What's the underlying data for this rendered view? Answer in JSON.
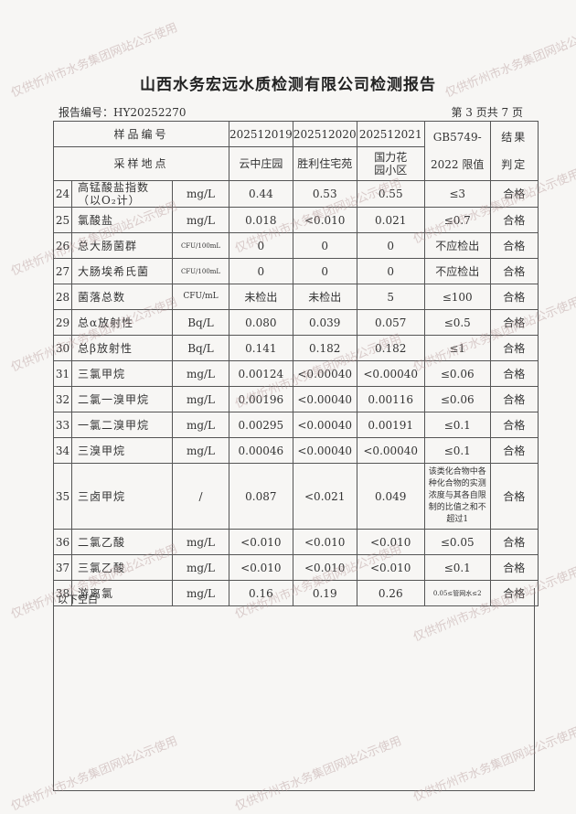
{
  "title": "山西水务宏远水质检测有限公司检测报告",
  "report_no": "报告编号：HY20252270",
  "page_info": "第 3 页共 7 页",
  "header": {
    "sample_no_label": "样品编号",
    "location_label": "采样地点",
    "samples": [
      "202512019",
      "202512020",
      "202512021"
    ],
    "locations": [
      "云中庄园",
      "胜利住宅苑",
      "国力花园小区"
    ],
    "limit_label": "GB5749-2022 限值",
    "result_label": "结果判定"
  },
  "rows": [
    {
      "no": "24",
      "name": "高锰酸盐指数（以O₂计）",
      "unit": "mg/L",
      "v": [
        "0.44",
        "0.53",
        "0.55"
      ],
      "limit": "≤3",
      "result": "合格"
    },
    {
      "no": "25",
      "name": "氯酸盐",
      "unit": "mg/L",
      "v": [
        "0.018",
        "<0.010",
        "0.021"
      ],
      "limit": "≤0.7",
      "result": "合格"
    },
    {
      "no": "26",
      "name": "总大肠菌群",
      "unit": "CFU/100mL",
      "v": [
        "0",
        "0",
        "0"
      ],
      "limit": "不应检出",
      "result": "合格"
    },
    {
      "no": "27",
      "name": "大肠埃希氏菌",
      "unit": "CFU/100mL",
      "v": [
        "0",
        "0",
        "0"
      ],
      "limit": "不应检出",
      "result": "合格"
    },
    {
      "no": "28",
      "name": "菌落总数",
      "unit": "CFU/mL",
      "v": [
        "未检出",
        "未检出",
        "5"
      ],
      "limit": "≤100",
      "result": "合格"
    },
    {
      "no": "29",
      "name": "总α放射性",
      "unit": "Bq/L",
      "v": [
        "0.080",
        "0.039",
        "0.057"
      ],
      "limit": "≤0.5",
      "result": "合格"
    },
    {
      "no": "30",
      "name": "总β放射性",
      "unit": "Bq/L",
      "v": [
        "0.141",
        "0.182",
        "0.182"
      ],
      "limit": "≤1",
      "result": "合格"
    },
    {
      "no": "31",
      "name": "三氯甲烷",
      "unit": "mg/L",
      "v": [
        "0.00124",
        "<0.00040",
        "<0.00040"
      ],
      "limit": "≤0.06",
      "result": "合格"
    },
    {
      "no": "32",
      "name": "二氯一溴甲烷",
      "unit": "mg/L",
      "v": [
        "0.00196",
        "<0.00040",
        "0.00116"
      ],
      "limit": "≤0.06",
      "result": "合格"
    },
    {
      "no": "33",
      "name": "一氯二溴甲烷",
      "unit": "mg/L",
      "v": [
        "0.00295",
        "<0.00040",
        "0.00191"
      ],
      "limit": "≤0.1",
      "result": "合格"
    },
    {
      "no": "34",
      "name": "三溴甲烷",
      "unit": "mg/L",
      "v": [
        "0.00046",
        "<0.00040",
        "<0.00040"
      ],
      "limit": "≤0.1",
      "result": "合格"
    },
    {
      "no": "35",
      "name": "三卤甲烷",
      "unit": "/",
      "v": [
        "0.087",
        "<0.021",
        "0.049"
      ],
      "limit": "该类化合物中各种化合物的实测浓度与其各自限制的比值之和不超过1",
      "result": "合格"
    },
    {
      "no": "36",
      "name": "二氯乙酸",
      "unit": "mg/L",
      "v": [
        "<0.010",
        "<0.010",
        "<0.010"
      ],
      "limit": "≤0.05",
      "result": "合格"
    },
    {
      "no": "37",
      "name": "三氯乙酸",
      "unit": "mg/L",
      "v": [
        "<0.010",
        "<0.010",
        "<0.010"
      ],
      "limit": "≤0.1",
      "result": "合格"
    },
    {
      "no": "38",
      "name": "游离氯",
      "unit": "mg/L",
      "v": [
        "0.16",
        "0.19",
        "0.26"
      ],
      "limit": "0.05≤管网水≤2",
      "result": "合格"
    }
  ],
  "blank_note": "以下空白",
  "watermark": "仅供忻州市水务集团网站公示使用"
}
